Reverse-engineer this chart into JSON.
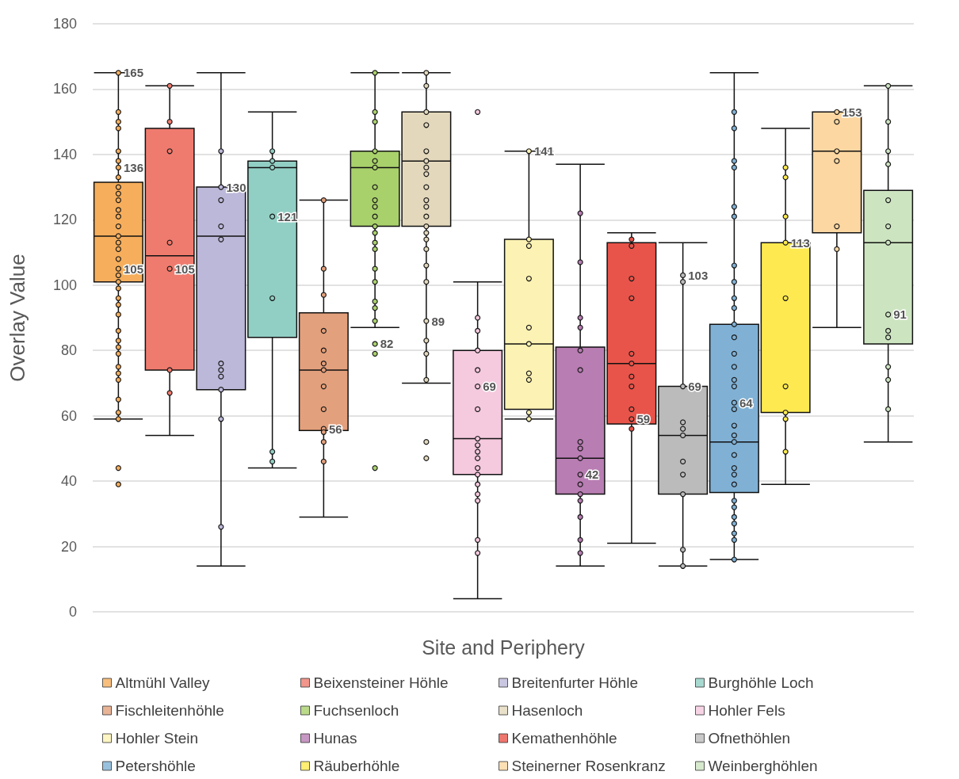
{
  "chart_data": {
    "type": "box",
    "xlabel": "Site and Periphery",
    "ylabel": "Overlay Value",
    "ylim": [
      0,
      180
    ],
    "yticks": [
      0,
      20,
      40,
      60,
      80,
      100,
      120,
      140,
      160,
      180
    ],
    "grid": "y",
    "legend": "bottom",
    "tick_labels": "y",
    "marker": "circle",
    "categories": [
      null,
      null,
      null,
      null,
      null,
      null,
      null,
      null,
      null,
      null,
      null,
      null,
      null,
      null,
      null,
      null
    ],
    "series": [
      {
        "name": "Altmühl Valley",
        "type": "box",
        "color": "#f6ae5c",
        "boxes": [
          {
            "low": 59,
            "q1": 101,
            "median": 115,
            "q3": 131.5,
            "high": 165
          },
          null,
          null,
          null,
          null,
          null,
          null,
          null,
          null,
          null,
          null,
          null,
          null,
          null,
          null,
          null
        ]
      },
      {
        "name": "Beixensteiner Höhle",
        "type": "box",
        "color": "#ef7b6e",
        "boxes": [
          null,
          {
            "low": 54,
            "q1": 74,
            "median": 109,
            "q3": 148,
            "high": 161
          },
          null,
          null,
          null,
          null,
          null,
          null,
          null,
          null,
          null,
          null,
          null,
          null,
          null,
          null
        ]
      },
      {
        "name": "Breitenfurter Höhle",
        "type": "box",
        "color": "#bcb8d9",
        "boxes": [
          null,
          null,
          {
            "low": 14,
            "q1": 68,
            "median": 115,
            "q3": 130,
            "high": 165
          },
          null,
          null,
          null,
          null,
          null,
          null,
          null,
          null,
          null,
          null,
          null,
          null,
          null
        ]
      },
      {
        "name": "Burghöhle Loch",
        "type": "box",
        "color": "#91cfc4",
        "boxes": [
          null,
          null,
          null,
          {
            "low": 44,
            "q1": 84,
            "median": 136,
            "q3": 138,
            "high": 153
          },
          null,
          null,
          null,
          null,
          null,
          null,
          null,
          null,
          null,
          null,
          null,
          null
        ]
      },
      {
        "name": "Fischleitenhöhle",
        "type": "box",
        "color": "#e3a07c",
        "boxes": [
          null,
          null,
          null,
          null,
          {
            "low": 29,
            "q1": 55.5,
            "median": 74,
            "q3": 91.5,
            "high": 126
          },
          null,
          null,
          null,
          null,
          null,
          null,
          null,
          null,
          null,
          null,
          null
        ]
      },
      {
        "name": "Fuchsenloch",
        "type": "box",
        "color": "#a9d16b",
        "boxes": [
          null,
          null,
          null,
          null,
          null,
          {
            "low": 87,
            "q1": 118,
            "median": 136,
            "q3": 141,
            "high": 165
          },
          null,
          null,
          null,
          null,
          null,
          null,
          null,
          null,
          null,
          null
        ]
      },
      {
        "name": "Hasenloch",
        "type": "box",
        "color": "#e4d8bc",
        "boxes": [
          null,
          null,
          null,
          null,
          null,
          null,
          {
            "low": 70,
            "q1": 118,
            "median": 138,
            "q3": 153,
            "high": 165
          },
          null,
          null,
          null,
          null,
          null,
          null,
          null,
          null,
          null
        ]
      },
      {
        "name": "Hohler Fels",
        "type": "box",
        "color": "#f5c9de",
        "boxes": [
          null,
          null,
          null,
          null,
          null,
          null,
          null,
          {
            "low": 4,
            "q1": 42,
            "median": 53,
            "q3": 80,
            "high": 101
          },
          null,
          null,
          null,
          null,
          null,
          null,
          null,
          null
        ]
      },
      {
        "name": "Hohler Stein",
        "type": "box",
        "color": "#fcf2b3",
        "boxes": [
          null,
          null,
          null,
          null,
          null,
          null,
          null,
          null,
          {
            "low": 59,
            "q1": 62,
            "median": 82,
            "q3": 114,
            "high": 141
          },
          null,
          null,
          null,
          null,
          null,
          null,
          null
        ]
      },
      {
        "name": "Hunas",
        "type": "box",
        "color": "#b87db3",
        "boxes": [
          null,
          null,
          null,
          null,
          null,
          null,
          null,
          null,
          null,
          {
            "low": 14,
            "q1": 36,
            "median": 47,
            "q3": 81,
            "high": 137
          },
          null,
          null,
          null,
          null,
          null,
          null
        ]
      },
      {
        "name": "Kemathenhöhle",
        "type": "box",
        "color": "#e8544a",
        "boxes": [
          null,
          null,
          null,
          null,
          null,
          null,
          null,
          null,
          null,
          null,
          {
            "low": 21,
            "q1": 57.5,
            "median": 76,
            "q3": 113,
            "high": 116
          },
          null,
          null,
          null,
          null,
          null
        ]
      },
      {
        "name": "Ofnethöhlen",
        "type": "box",
        "color": "#bbbbbb",
        "boxes": [
          null,
          null,
          null,
          null,
          null,
          null,
          null,
          null,
          null,
          null,
          null,
          {
            "low": 14,
            "q1": 36,
            "median": 54,
            "q3": 69,
            "high": 113
          },
          null,
          null,
          null,
          null
        ]
      },
      {
        "name": "Petershöhle",
        "type": "box",
        "color": "#80b1d5",
        "boxes": [
          null,
          null,
          null,
          null,
          null,
          null,
          null,
          null,
          null,
          null,
          null,
          null,
          {
            "low": 16,
            "q1": 36.5,
            "median": 52,
            "q3": 88,
            "high": 165
          },
          null,
          null,
          null
        ]
      },
      {
        "name": "Räuberhöhle",
        "type": "box",
        "color": "#feea50",
        "boxes": [
          null,
          null,
          null,
          null,
          null,
          null,
          null,
          null,
          null,
          null,
          null,
          null,
          null,
          {
            "low": 39,
            "q1": 61,
            "median": 113,
            "q3": 113,
            "high": 148
          },
          null,
          null
        ]
      },
      {
        "name": "Steinerner Rosenkranz",
        "type": "box",
        "color": "#fdd7a1",
        "boxes": [
          null,
          null,
          null,
          null,
          null,
          null,
          null,
          null,
          null,
          null,
          null,
          null,
          null,
          null,
          {
            "low": 87,
            "q1": 116,
            "median": 141,
            "q3": 153,
            "high": 153
          },
          null
        ]
      },
      {
        "name": "Weinberghöhlen",
        "type": "box",
        "color": "#cde4c1",
        "boxes": [
          null,
          null,
          null,
          null,
          null,
          null,
          null,
          null,
          null,
          null,
          null,
          null,
          null,
          null,
          null,
          {
            "low": 52,
            "q1": 82,
            "median": 113,
            "q3": 129,
            "high": 161
          }
        ]
      },
      {
        "type": "scatter",
        "colors": [
          "#f6ae5c",
          "#ef7b6e",
          "#bcb8d9",
          "#91cfc4",
          "#e3a07c",
          "#a9d16b",
          "#e4d8bc",
          "#f5c9de",
          "#fcf2b3",
          "#b87db3",
          "#e8544a",
          "#bbbbbb",
          "#80b1d5",
          "#feea50",
          "#fdd7a1",
          "#cde4c1"
        ],
        "values": [
          165,
          161,
          141,
          141,
          126,
          165,
          165,
          153,
          141,
          122,
          114,
          103,
          153,
          136,
          153,
          161
        ],
        "value_labels": [
          "165",
          null,
          null,
          null,
          null,
          null,
          null,
          null,
          "141",
          null,
          null,
          "103",
          null,
          null,
          "153",
          null
        ]
      },
      {
        "type": "scatter",
        "colors": [
          "#f6ae5c",
          "#ef7b6e",
          "#bcb8d9",
          "#91cfc4",
          "#e3a07c",
          "#a9d16b",
          "#e4d8bc",
          "#f5c9de",
          "#fcf2b3",
          "#b87db3",
          "#e8544a",
          "#bbbbbb",
          "#80b1d5",
          "#feea50",
          "#fdd7a1",
          "#cde4c1"
        ],
        "values": [
          153,
          150,
          130,
          138,
          105,
          153,
          161,
          90,
          114,
          107,
          112,
          101,
          148,
          133,
          150,
          150
        ],
        "value_labels": [
          null,
          null,
          "130",
          null,
          null,
          null,
          null,
          null,
          null,
          null,
          null,
          null,
          null,
          null,
          null,
          null
        ]
      },
      {
        "type": "scatter",
        "colors": [
          "#f6ae5c",
          "#ef7b6e",
          "#bcb8d9",
          "#91cfc4",
          "#e3a07c",
          "#a9d16b",
          "#e4d8bc",
          "#f5c9de",
          "#fcf2b3",
          "#b87db3",
          "#e8544a",
          "#bbbbbb",
          "#80b1d5",
          "#feea50",
          "#fdd7a1",
          "#cde4c1"
        ],
        "values": [
          150,
          141,
          126,
          136,
          97,
          150,
          153,
          86,
          112,
          90,
          102,
          69,
          138,
          121,
          141,
          141
        ],
        "value_labels": [
          null,
          null,
          null,
          null,
          null,
          null,
          null,
          null,
          null,
          null,
          null,
          "69",
          null,
          null,
          null,
          null
        ]
      },
      {
        "type": "scatter",
        "colors": [
          "#f6ae5c",
          "#ef7b6e",
          "#bcb8d9",
          "#91cfc4",
          "#e3a07c",
          "#a9d16b",
          "#e4d8bc",
          "#f5c9de",
          "#fcf2b3",
          "#b87db3",
          "#e8544a",
          "#bbbbbb",
          "#80b1d5",
          "#feea50",
          "#fdd7a1",
          "#cde4c1"
        ],
        "values": [
          148,
          113,
          118,
          121,
          86,
          141,
          149,
          80,
          102,
          87,
          96,
          58,
          136,
          113,
          138,
          137
        ],
        "value_labels": [
          null,
          null,
          null,
          "121",
          null,
          null,
          null,
          null,
          null,
          null,
          null,
          null,
          null,
          "113",
          null,
          null
        ]
      },
      {
        "type": "scatter",
        "colors": [
          "#f6ae5c",
          "#ef7b6e",
          "#bcb8d9",
          "#91cfc4",
          "#e3a07c",
          "#a9d16b",
          "#e4d8bc",
          "#f5c9de",
          "#fcf2b3",
          "#b87db3",
          "#e8544a",
          "#bbbbbb",
          "#80b1d5",
          "#feea50",
          "#fdd7a1",
          "#cde4c1"
        ],
        "values": [
          141,
          105,
          114,
          96,
          80,
          138,
          141,
          74,
          87,
          80,
          79,
          56,
          124,
          96,
          118,
          126
        ],
        "value_labels": [
          null,
          "105",
          null,
          null,
          null,
          null,
          null,
          null,
          null,
          null,
          null,
          null,
          null,
          null,
          null,
          null
        ]
      },
      {
        "type": "scatter",
        "colors": [
          "#f6ae5c",
          "#ef7b6e",
          "#bcb8d9",
          "#91cfc4",
          "#e3a07c",
          "#a9d16b",
          "#e4d8bc",
          "#f5c9de",
          "#fcf2b3",
          "#b87db3",
          "#e8544a",
          "#bbbbbb",
          "#80b1d5",
          "#feea50",
          "#fdd7a1",
          "#cde4c1"
        ],
        "values": [
          138,
          74,
          76,
          49,
          76,
          136,
          138,
          69,
          82,
          74,
          76,
          54,
          121,
          69,
          111,
          118
        ],
        "value_labels": [
          null,
          null,
          null,
          null,
          null,
          null,
          null,
          "69",
          null,
          null,
          null,
          null,
          null,
          null,
          null,
          null
        ]
      },
      {
        "type": "scatter",
        "colors": [
          "#f6ae5c",
          "#ef7b6e",
          "#bcb8d9",
          "#91cfc4",
          "#e3a07c",
          "#a9d16b",
          "#e4d8bc",
          "#f5c9de",
          "#fcf2b3",
          "#b87db3",
          "#e8544a",
          "#bbbbbb",
          "#80b1d5",
          "#feea50",
          null,
          "#cde4c1"
        ],
        "values": [
          136,
          67,
          74,
          46,
          74,
          130,
          136,
          62,
          73,
          52,
          72,
          46,
          106,
          61,
          null,
          113
        ],
        "value_labels": [
          "136",
          null,
          null,
          null,
          null,
          null,
          null,
          null,
          null,
          null,
          null,
          null,
          null,
          null,
          null,
          null
        ]
      },
      {
        "type": "scatter",
        "colors": [
          "#f6ae5c",
          null,
          "#bcb8d9",
          null,
          "#e3a07c",
          "#a9d16b",
          "#e4d8bc",
          "#f5c9de",
          "#fcf2b3",
          "#b87db3",
          "#e8544a",
          "#bbbbbb",
          "#80b1d5",
          "#feea50",
          null,
          "#cde4c1"
        ],
        "values": [
          133,
          null,
          72,
          null,
          69,
          126,
          134,
          53,
          71,
          50,
          69,
          42,
          101,
          59,
          null,
          91
        ],
        "value_labels": [
          null,
          null,
          null,
          null,
          null,
          null,
          null,
          null,
          null,
          null,
          null,
          null,
          null,
          null,
          null,
          "91"
        ]
      },
      {
        "type": "scatter",
        "colors": [
          "#f6ae5c",
          null,
          "#bcb8d9",
          null,
          "#e3a07c",
          "#a9d16b",
          "#e4d8bc",
          "#f5c9de",
          "#fcf2b3",
          "#b87db3",
          "#e8544a",
          "#bbbbbb",
          "#80b1d5",
          "#feea50",
          null,
          "#cde4c1"
        ],
        "values": [
          130,
          null,
          68,
          null,
          62,
          124,
          130,
          51,
          61,
          47,
          62,
          36,
          96,
          49,
          null,
          86
        ]
      },
      {
        "type": "scatter",
        "colors": [
          "#f6ae5c",
          null,
          "#bcb8d9",
          null,
          "#e3a07c",
          "#a9d16b",
          "#e4d8bc",
          "#f5c9de",
          "#fcf2b3",
          "#b87db3",
          "#e8544a",
          "#bbbbbb",
          "#80b1d5",
          null,
          null,
          "#cde4c1"
        ],
        "values": [
          128,
          null,
          59,
          null,
          56,
          121,
          126,
          49,
          59,
          42,
          59,
          19,
          93,
          null,
          null,
          84
        ],
        "value_labels": [
          null,
          null,
          null,
          null,
          "56",
          null,
          null,
          null,
          null,
          "42",
          "59",
          null,
          null,
          null,
          null,
          null
        ]
      },
      {
        "type": "scatter",
        "colors": [
          "#f6ae5c",
          null,
          "#bcb8d9",
          null,
          "#e3a07c",
          "#a9d16b",
          "#e4d8bc",
          "#f5c9de",
          null,
          "#b87db3",
          "#e8544a",
          "#bbbbbb",
          "#80b1d5",
          null,
          null,
          "#cde4c1"
        ],
        "values": [
          126,
          null,
          26,
          null,
          55,
          118,
          124,
          47,
          null,
          39,
          56,
          14,
          88,
          null,
          null,
          75
        ]
      },
      {
        "type": "scatter",
        "colors": [
          "#f6ae5c",
          null,
          null,
          null,
          "#e3a07c",
          "#a9d16b",
          "#e4d8bc",
          "#f5c9de",
          null,
          "#b87db3",
          null,
          null,
          "#80b1d5",
          null,
          null,
          "#cde4c1"
        ],
        "values": [
          123,
          null,
          null,
          null,
          52,
          116,
          121,
          44,
          null,
          36,
          null,
          null,
          84,
          null,
          null,
          71
        ]
      },
      {
        "type": "scatter",
        "colors": [
          "#f6ae5c",
          null,
          null,
          null,
          "#e3a07c",
          "#a9d16b",
          "#e4d8bc",
          "#f5c9de",
          null,
          "#b87db3",
          null,
          null,
          "#80b1d5",
          null,
          null,
          "#cde4c1"
        ],
        "values": [
          121,
          null,
          null,
          null,
          46,
          113,
          118,
          42,
          null,
          34,
          null,
          null,
          79,
          null,
          null,
          62
        ]
      },
      {
        "type": "scatter",
        "colors": [
          "#f6ae5c",
          null,
          null,
          null,
          null,
          "#a9d16b",
          "#e4d8bc",
          "#f5c9de",
          null,
          "#b87db3",
          null,
          null,
          "#80b1d5",
          null,
          null,
          null
        ],
        "values": [
          118,
          null,
          null,
          null,
          null,
          111,
          116,
          39,
          null,
          29,
          null,
          null,
          75,
          null,
          null,
          null
        ]
      },
      {
        "type": "scatter",
        "colors": [
          "#f6ae5c",
          null,
          null,
          null,
          null,
          "#a9d16b",
          "#e4d8bc",
          "#f5c9de",
          null,
          "#b87db3",
          null,
          null,
          "#80b1d5",
          null,
          null,
          null
        ],
        "values": [
          115,
          null,
          null,
          null,
          null,
          105,
          114,
          36,
          null,
          22,
          null,
          null,
          71,
          null,
          null,
          null
        ]
      },
      {
        "type": "scatter",
        "colors": [
          "#f6ae5c",
          null,
          null,
          null,
          null,
          "#a9d16b",
          "#e4d8bc",
          "#f5c9de",
          null,
          "#b87db3",
          null,
          null,
          "#80b1d5",
          null,
          null,
          null
        ],
        "values": [
          113,
          null,
          null,
          null,
          null,
          101,
          111,
          34,
          null,
          18,
          null,
          null,
          69,
          null,
          null,
          null
        ]
      },
      {
        "type": "scatter",
        "colors": [
          "#f6ae5c",
          null,
          null,
          null,
          null,
          "#a9d16b",
          "#e4d8bc",
          "#f5c9de",
          null,
          null,
          null,
          null,
          "#80b1d5",
          null,
          null,
          null
        ],
        "values": [
          111,
          null,
          null,
          null,
          null,
          95,
          106,
          22,
          null,
          null,
          null,
          null,
          64,
          null,
          null,
          null
        ],
        "value_labels": [
          null,
          null,
          null,
          null,
          null,
          null,
          null,
          null,
          null,
          null,
          null,
          null,
          "64",
          null,
          null,
          null
        ]
      },
      {
        "type": "scatter",
        "colors": [
          "#f6ae5c",
          null,
          null,
          null,
          null,
          "#a9d16b",
          "#e4d8bc",
          "#f5c9de",
          null,
          null,
          null,
          null,
          "#80b1d5",
          null,
          null,
          null
        ],
        "values": [
          108,
          null,
          null,
          null,
          null,
          93,
          101,
          18,
          null,
          null,
          null,
          null,
          62,
          null,
          null,
          null
        ]
      },
      {
        "type": "scatter",
        "colors": [
          "#f6ae5c",
          null,
          null,
          null,
          null,
          "#a9d16b",
          "#e4d8bc",
          null,
          null,
          null,
          null,
          null,
          "#80b1d5",
          null,
          null,
          null
        ],
        "values": [
          105,
          null,
          null,
          null,
          null,
          89,
          89,
          null,
          null,
          null,
          null,
          null,
          57,
          null,
          null,
          null
        ],
        "value_labels": [
          "105",
          null,
          null,
          null,
          null,
          null,
          "89",
          null,
          null,
          null,
          null,
          null,
          null,
          null,
          null,
          null
        ]
      },
      {
        "type": "scatter",
        "colors": [
          "#f6ae5c",
          null,
          null,
          null,
          null,
          "#a9d16b",
          "#e4d8bc",
          null,
          null,
          null,
          null,
          null,
          "#80b1d5",
          null,
          null,
          null
        ],
        "values": [
          103,
          null,
          null,
          null,
          null,
          82,
          83,
          null,
          null,
          null,
          null,
          null,
          54,
          null,
          null,
          null
        ],
        "value_labels": [
          null,
          null,
          null,
          null,
          null,
          "82",
          null,
          null,
          null,
          null,
          null,
          null,
          null,
          null,
          null,
          null
        ]
      },
      {
        "type": "scatter",
        "colors": [
          "#f6ae5c",
          null,
          null,
          null,
          null,
          "#a9d16b",
          "#e4d8bc",
          null,
          null,
          null,
          null,
          null,
          "#80b1d5",
          null,
          null,
          null
        ],
        "values": [
          101,
          null,
          null,
          null,
          null,
          79,
          79,
          null,
          null,
          null,
          null,
          null,
          52,
          null,
          null,
          null
        ]
      },
      {
        "type": "scatter",
        "colors": [
          "#f6ae5c",
          null,
          null,
          null,
          null,
          "#a9d16b",
          "#e4d8bc",
          null,
          null,
          null,
          null,
          null,
          "#80b1d5",
          null,
          null,
          null
        ],
        "values": [
          99,
          null,
          null,
          null,
          null,
          44,
          71,
          null,
          null,
          null,
          null,
          null,
          48,
          null,
          null,
          null
        ]
      },
      {
        "type": "scatter",
        "colors": [
          "#f6ae5c",
          null,
          null,
          null,
          null,
          null,
          "#e4d8bc",
          null,
          null,
          null,
          null,
          null,
          "#80b1d5",
          null,
          null,
          null
        ],
        "values": [
          96,
          null,
          null,
          null,
          null,
          null,
          52,
          null,
          null,
          null,
          null,
          null,
          44,
          null,
          null,
          null
        ]
      },
      {
        "type": "scatter",
        "colors": [
          "#f6ae5c",
          null,
          null,
          null,
          null,
          null,
          "#e4d8bc",
          null,
          null,
          null,
          null,
          null,
          "#80b1d5",
          null,
          null,
          null
        ],
        "values": [
          94,
          null,
          null,
          null,
          null,
          null,
          47,
          null,
          null,
          null,
          null,
          null,
          42,
          null,
          null,
          null
        ]
      },
      {
        "type": "scatter",
        "colors": [
          "#f6ae5c",
          null,
          null,
          null,
          null,
          null,
          null,
          null,
          null,
          null,
          null,
          null,
          "#80b1d5",
          null,
          null,
          null
        ],
        "values": [
          91,
          null,
          null,
          null,
          null,
          null,
          null,
          null,
          null,
          null,
          null,
          null,
          39,
          null,
          null,
          null
        ]
      },
      {
        "type": "scatter",
        "colors": [
          "#f6ae5c",
          null,
          null,
          null,
          null,
          null,
          null,
          null,
          null,
          null,
          null,
          null,
          "#80b1d5",
          null,
          null,
          null
        ],
        "values": [
          86,
          null,
          null,
          null,
          null,
          null,
          null,
          null,
          null,
          null,
          null,
          null,
          34,
          null,
          null,
          null
        ]
      },
      {
        "type": "scatter",
        "colors": [
          "#f6ae5c",
          null,
          null,
          null,
          null,
          null,
          null,
          null,
          null,
          null,
          null,
          null,
          "#80b1d5",
          null,
          null,
          null
        ],
        "values": [
          83,
          null,
          null,
          null,
          null,
          null,
          null,
          null,
          null,
          null,
          null,
          null,
          32,
          null,
          null,
          null
        ]
      },
      {
        "type": "scatter",
        "colors": [
          "#f6ae5c",
          null,
          null,
          null,
          null,
          null,
          null,
          null,
          null,
          null,
          null,
          null,
          "#80b1d5",
          null,
          null,
          null
        ],
        "values": [
          81,
          null,
          null,
          null,
          null,
          null,
          null,
          null,
          null,
          null,
          null,
          null,
          29,
          null,
          null,
          null
        ]
      },
      {
        "type": "scatter",
        "colors": [
          "#f6ae5c",
          null,
          null,
          null,
          null,
          null,
          null,
          null,
          null,
          null,
          null,
          null,
          "#80b1d5",
          null,
          null,
          null
        ],
        "values": [
          79,
          null,
          null,
          null,
          null,
          null,
          null,
          null,
          null,
          null,
          null,
          null,
          27,
          null,
          null,
          null
        ]
      },
      {
        "type": "scatter",
        "colors": [
          "#f6ae5c",
          null,
          null,
          null,
          null,
          null,
          null,
          null,
          null,
          null,
          null,
          null,
          "#80b1d5",
          null,
          null,
          null
        ],
        "values": [
          75,
          null,
          null,
          null,
          null,
          null,
          null,
          null,
          null,
          null,
          null,
          null,
          24,
          null,
          null,
          null
        ]
      },
      {
        "type": "scatter",
        "colors": [
          "#f6ae5c",
          null,
          null,
          null,
          null,
          null,
          null,
          null,
          null,
          null,
          null,
          null,
          "#80b1d5",
          null,
          null,
          null
        ],
        "values": [
          73,
          null,
          null,
          null,
          null,
          null,
          null,
          null,
          null,
          null,
          null,
          null,
          22,
          null,
          null,
          null
        ]
      },
      {
        "type": "scatter",
        "colors": [
          "#f6ae5c",
          null,
          null,
          null,
          null,
          null,
          null,
          null,
          null,
          null,
          null,
          null,
          "#80b1d5",
          null,
          null,
          null
        ],
        "values": [
          71,
          null,
          null,
          null,
          null,
          null,
          null,
          null,
          null,
          null,
          null,
          null,
          16,
          null,
          null,
          null
        ]
      },
      {
        "type": "scatter",
        "color": "#f6ae5c",
        "values": [
          65,
          null,
          null,
          null,
          null,
          null,
          null,
          null,
          null,
          null,
          null,
          null,
          null,
          null,
          null,
          null
        ]
      },
      {
        "type": "scatter",
        "color": "#f6ae5c",
        "values": [
          61,
          null,
          null,
          null,
          null,
          null,
          null,
          null,
          null,
          null,
          null,
          null,
          null,
          null,
          null,
          null
        ]
      },
      {
        "type": "scatter",
        "color": "#f6ae5c",
        "values": [
          59,
          null,
          null,
          null,
          null,
          null,
          null,
          null,
          null,
          null,
          null,
          null,
          null,
          null,
          null,
          null
        ]
      },
      {
        "type": "scatter",
        "color": "#f6ae5c",
        "values": [
          44,
          null,
          null,
          null,
          null,
          null,
          null,
          null,
          null,
          null,
          null,
          null,
          null,
          null,
          null,
          null
        ]
      },
      {
        "type": "scatter",
        "color": "#f6ae5c",
        "values": [
          39,
          null,
          null,
          null,
          null,
          null,
          null,
          null,
          null,
          null,
          null,
          null,
          null,
          null,
          null,
          null
        ]
      }
    ]
  }
}
